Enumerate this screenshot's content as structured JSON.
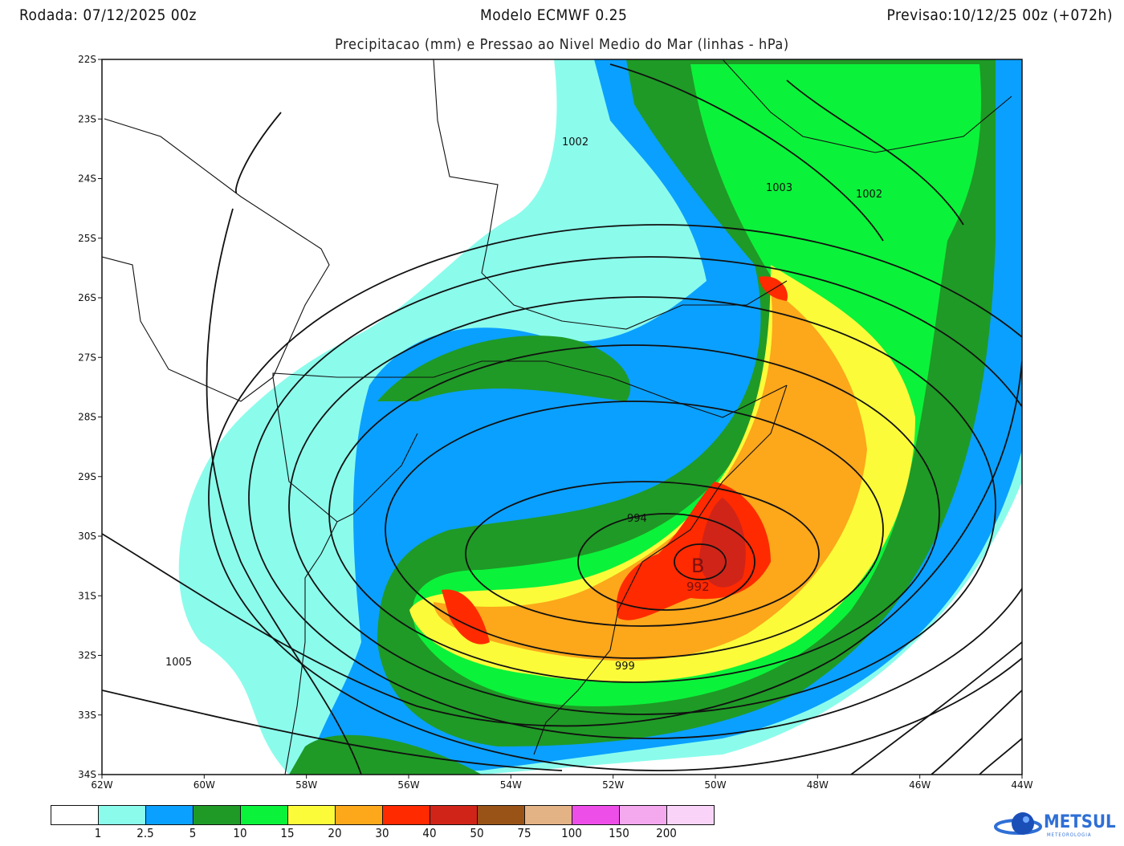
{
  "header": {
    "run": "Rodada: 07/12/2025 00z",
    "model": "Modelo ECMWF 0.25",
    "forecast": "Previsao:10/12/25 00z (+072h)",
    "subtitle": "Precipitacao (mm) e Pressao ao Nivel Medio do Mar (linhas - hPa)"
  },
  "map": {
    "lat_labels": [
      "22S",
      "23S",
      "24S",
      "25S",
      "26S",
      "27S",
      "28S",
      "29S",
      "30S",
      "31S",
      "32S",
      "33S",
      "34S"
    ],
    "lon_labels": [
      "62W",
      "60W",
      "58W",
      "56W",
      "54W",
      "52W",
      "50W",
      "48W",
      "46W",
      "44W"
    ],
    "isobar_labels": [
      "1002",
      "1003",
      "1002",
      "994",
      "992",
      "999",
      "1005"
    ],
    "low_marker": "B"
  },
  "colorbar": {
    "colors": [
      "#ffffff",
      "#8bfcec",
      "#0aa0ff",
      "#1f9a26",
      "#0bf23a",
      "#fbfb3a",
      "#fda71a",
      "#ff2a00",
      "#d02418",
      "#9a5316",
      "#e3b386",
      "#ee4ee8",
      "#f4a8ee",
      "#fad4f8"
    ],
    "labels": [
      "1",
      "2.5",
      "5",
      "10",
      "15",
      "20",
      "30",
      "40",
      "50",
      "75",
      "100",
      "150",
      "200"
    ]
  },
  "logo": {
    "name": "METSUL",
    "sub": "METEOROLOGIA"
  }
}
